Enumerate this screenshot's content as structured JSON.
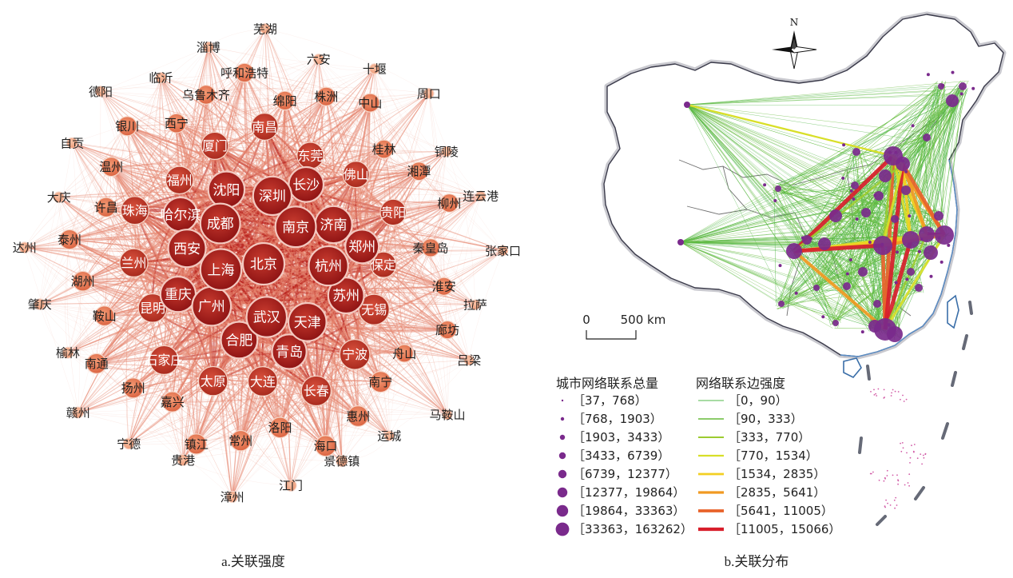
{
  "panel_a": {
    "caption": "a.关联强度",
    "nodes_center": [
      "北京",
      "上海",
      "南京",
      "武汉",
      "成都",
      "杭州",
      "广州",
      "深圳",
      "天津",
      "西安",
      "济南",
      "合肥",
      "沈阳",
      "苏州",
      "重庆",
      "长沙",
      "青岛",
      "哈尔滨",
      "郑州"
    ],
    "nodes_inner": [
      "无锡",
      "宁波",
      "长春",
      "大连",
      "太原",
      "石家庄",
      "昆明",
      "兰州",
      "珠海",
      "福州",
      "厦门",
      "南昌",
      "东莞",
      "佛山",
      "贵阳",
      "保定"
    ],
    "nodes_middle": [
      "南宁",
      "惠州",
      "海口",
      "洛阳",
      "常州",
      "镇江",
      "嘉兴",
      "扬州",
      "南通",
      "鞍山",
      "湖州",
      "泰州",
      "许昌",
      "温州",
      "银川",
      "西宁",
      "乌鲁木齐",
      "呼和浩特",
      "绵阳",
      "株洲",
      "中山",
      "桂林",
      "湘潭",
      "柳州",
      "秦皇岛",
      "淮安",
      "廊坊",
      "舟山"
    ],
    "nodes_outer": [
      "景德镇",
      "江门",
      "漳州",
      "贵港",
      "宁德",
      "赣州",
      "榆林",
      "肇庆",
      "达州",
      "大庆",
      "自贡",
      "德阳",
      "临沂",
      "淄博",
      "芜湖",
      "六安",
      "十堰",
      "周口",
      "铜陵",
      "连云港",
      "张家口",
      "拉萨",
      "吕梁",
      "马鞍山",
      "运城"
    ]
  },
  "panel_b": {
    "caption": "b.关联分布",
    "north_label": "N",
    "scale_zero": "0",
    "scale_label": "500 km",
    "legend_nodes_title": "城市网络联系总量",
    "legend_edges_title": "网络联系边强度",
    "legend_nodes": [
      "［37，768）",
      "［768，1903）",
      "［1903，3433）",
      "［3433，6739）",
      "［6739，12377）",
      "［12377，19864）",
      "［19864，33363）",
      "［33363，163262）"
    ],
    "legend_edges": [
      "［0，90）",
      "［90，333）",
      "［333，770）",
      "［770，1534）",
      "［1534，2835）",
      "［2835，5641）",
      "［5641，11005）",
      "［11005，15066）"
    ],
    "node_color": "#7a2a8c",
    "edge_colors": [
      "#52b848",
      "#66bb3a",
      "#9ccc30",
      "#d8df28",
      "#f3cf22",
      "#f19a22",
      "#e8622a",
      "#d81e2b"
    ]
  }
}
